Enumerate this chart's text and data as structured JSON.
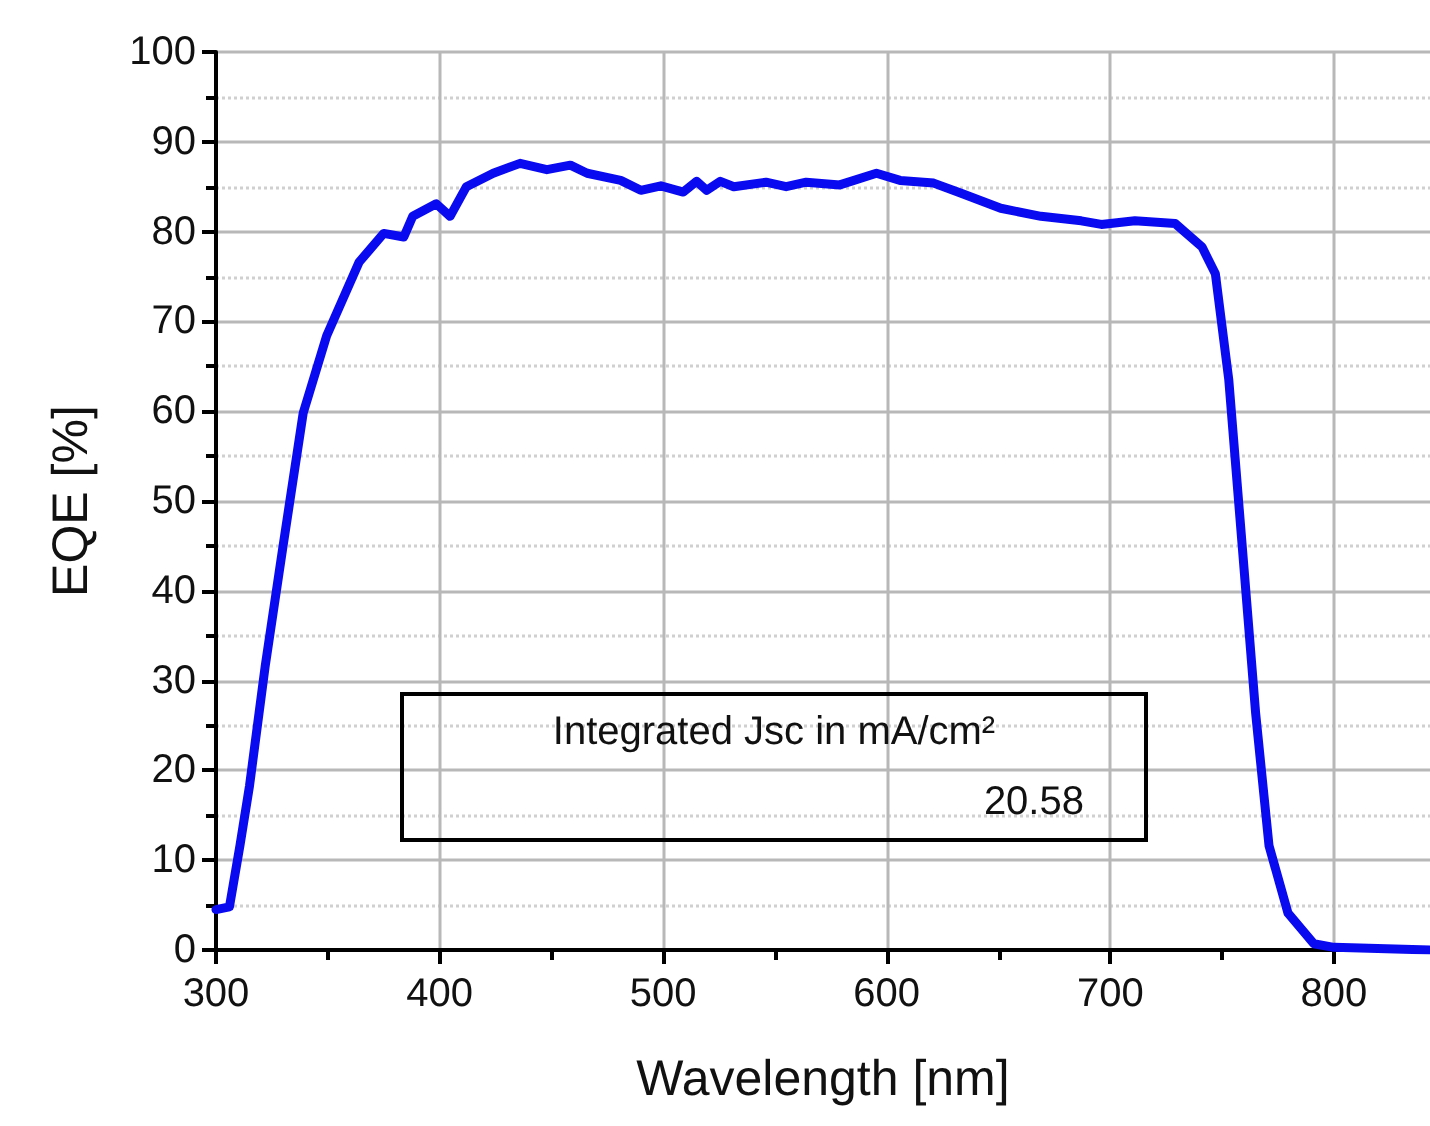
{
  "chart_data": {
    "type": "line",
    "xlabel": "Wavelength [nm]",
    "ylabel": "EQE [%]",
    "x": [
      300,
      306,
      310.7,
      315,
      322,
      330,
      339,
      349.5,
      364,
      375,
      384,
      388,
      398.5,
      404.7,
      412,
      424,
      436,
      448,
      458.5,
      466,
      481,
      490,
      499,
      509,
      515,
      519.5,
      525.6,
      531.6,
      546,
      555,
      564,
      579,
      595.4,
      606,
      621,
      633,
      651,
      669,
      687,
      696,
      711,
      729,
      741,
      747,
      753,
      759,
      765,
      771,
      779.5,
      791,
      800,
      843
    ],
    "series": [
      {
        "color": "#0a0af0",
        "values": [
          4.5,
          4.8,
          11.6,
          18.3,
          31.6,
          45,
          59.8,
          68.4,
          76.6,
          79.8,
          79.4,
          81.7,
          83.1,
          81.7,
          85,
          86.5,
          87.6,
          86.9,
          87.4,
          86.5,
          85.7,
          84.6,
          85.1,
          84.4,
          85.6,
          84.6,
          85.6,
          85,
          85.5,
          85,
          85.5,
          85.2,
          86.5,
          85.7,
          85.4,
          84.3,
          82.6,
          81.7,
          81.2,
          80.8,
          81.2,
          80.9,
          78.3,
          75.3,
          63.5,
          45,
          26.4,
          11.6,
          4.1,
          0.7,
          0.3,
          0
        ]
      }
    ],
    "xlim": [
      300,
      843
    ],
    "xticks": [
      300,
      {
        "value": 350,
        "label": null
      },
      400,
      {
        "value": 450,
        "label": null
      },
      500,
      {
        "value": 550,
        "label": null
      },
      600,
      {
        "value": 650,
        "label": null
      },
      700,
      {
        "value": 750,
        "label": null
      },
      800
    ],
    "ylim": [
      0,
      100
    ],
    "yticks": [
      0,
      {
        "value": 5,
        "label": null
      },
      10,
      {
        "value": 15,
        "label": null
      },
      20,
      {
        "value": 25,
        "label": null
      },
      30,
      {
        "value": 35,
        "label": null
      },
      40,
      {
        "value": 45,
        "label": null
      },
      50,
      {
        "value": 55,
        "label": null
      },
      60,
      {
        "value": 65,
        "label": null
      },
      70,
      {
        "value": 75,
        "label": null
      },
      80,
      {
        "value": 85,
        "label": null
      },
      90,
      {
        "value": 95,
        "label": null
      },
      100
    ],
    "grid": true,
    "marker": "none",
    "line_style": "solid",
    "annotations": [
      "Integrated Jsc in mA/cm²",
      "20.58"
    ]
  }
}
